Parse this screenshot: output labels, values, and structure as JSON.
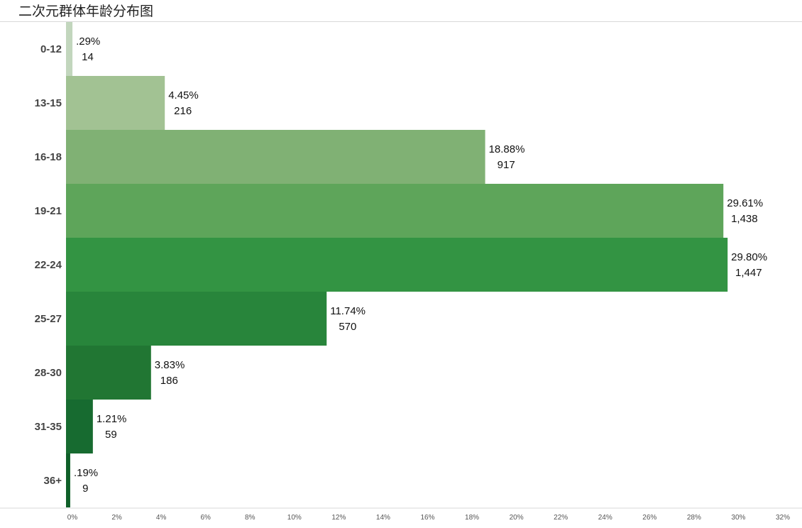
{
  "chart_data": {
    "type": "bar",
    "orientation": "horizontal",
    "title": "二次元群体年龄分布图",
    "categories": [
      "0-12",
      "13-15",
      "16-18",
      "19-21",
      "22-24",
      "25-27",
      "28-30",
      "31-35",
      "36+"
    ],
    "values": [
      0.29,
      4.45,
      18.88,
      29.61,
      29.8,
      11.74,
      3.83,
      1.21,
      0.19
    ],
    "percent_labels": [
      ".29%",
      "4.45%",
      "18.88%",
      "29.61%",
      "29.80%",
      "11.74%",
      "3.83%",
      "1.21%",
      ".19%"
    ],
    "count_labels": [
      "14",
      "216",
      "917",
      "1,438",
      "1,447",
      "570",
      "186",
      "59",
      "9"
    ],
    "colors": [
      "#c2d6bd",
      "#a2c293",
      "#80b174",
      "#5ea55a",
      "#339443",
      "#28853b",
      "#217633",
      "#176b30",
      "#0f5f28"
    ],
    "xlim": [
      0,
      32
    ],
    "xticks": [
      "0%",
      "2%",
      "4%",
      "6%",
      "8%",
      "10%",
      "12%",
      "14%",
      "16%",
      "18%",
      "20%",
      "22%",
      "24%",
      "26%",
      "28%",
      "30%",
      "32%"
    ],
    "grid": false,
    "legend": "none"
  }
}
